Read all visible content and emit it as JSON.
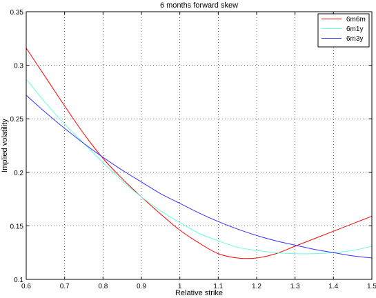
{
  "chart_data": {
    "type": "line",
    "title": "6 months forward skew",
    "xlabel": "Relative strike",
    "ylabel": "Implied volatility",
    "xlim": [
      0.6,
      1.5
    ],
    "ylim": [
      0.1,
      0.35
    ],
    "xticks": [
      0.6,
      0.7,
      0.8,
      0.9,
      1.0,
      1.1,
      1.2,
      1.3,
      1.4,
      1.5
    ],
    "xtick_labels": [
      "0.6",
      "0.7",
      "0.8",
      "0.9",
      "1",
      "1.1",
      "1.2",
      "1.3",
      "1.4",
      "1.5"
    ],
    "yticks": [
      0.1,
      0.15,
      0.2,
      0.25,
      0.3,
      0.35
    ],
    "ytick_labels": [
      "0.1",
      "0.15",
      "0.2",
      "0.25",
      "0.3",
      "0.35"
    ],
    "grid": true,
    "legend_position": "top-right",
    "x": [
      0.6,
      0.65,
      0.7,
      0.75,
      0.8,
      0.85,
      0.9,
      0.95,
      1.0,
      1.05,
      1.1,
      1.15,
      1.2,
      1.25,
      1.3,
      1.35,
      1.4,
      1.45,
      1.5
    ],
    "series": [
      {
        "name": "6m6m",
        "color": "#ff0000",
        "values": [
          0.316,
          0.289,
          0.262,
          0.236,
          0.213,
          0.194,
          0.177,
          0.161,
          0.146,
          0.134,
          0.124,
          0.12,
          0.12,
          0.124,
          0.131,
          0.138,
          0.145,
          0.152,
          0.159
        ]
      },
      {
        "name": "6m1y",
        "color": "#66ffdd",
        "values": [
          0.287,
          0.265,
          0.245,
          0.227,
          0.209,
          0.192,
          0.177,
          0.164,
          0.153,
          0.143,
          0.136,
          0.13,
          0.127,
          0.125,
          0.124,
          0.124,
          0.125,
          0.127,
          0.131
        ]
      },
      {
        "name": "6m3y",
        "color": "#3333ff",
        "values": [
          0.272,
          0.256,
          0.241,
          0.227,
          0.214,
          0.202,
          0.191,
          0.18,
          0.171,
          0.162,
          0.154,
          0.147,
          0.141,
          0.136,
          0.132,
          0.128,
          0.125,
          0.122,
          0.12
        ]
      }
    ]
  }
}
